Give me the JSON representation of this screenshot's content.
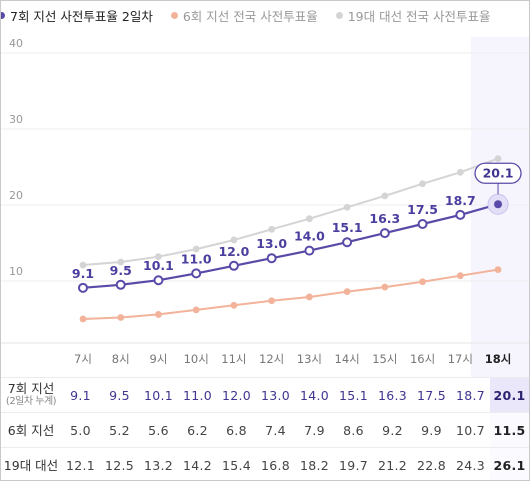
{
  "legend": [
    {
      "label": "7회 지선 사전투표율 2일차",
      "color": "#5a4aa8"
    },
    {
      "label": "6회 지선 전국 사전투표율",
      "color": "#f2b39a"
    },
    {
      "label": "19대 대선 전국 사전투표율",
      "color": "#d4d4d4"
    }
  ],
  "chart_data": {
    "type": "line",
    "categories": [
      "7시",
      "8시",
      "9시",
      "10시",
      "11시",
      "12시",
      "13시",
      "14시",
      "15시",
      "16시",
      "17시",
      "18시"
    ],
    "y_ticks": [
      "10",
      "20",
      "30",
      "40"
    ],
    "ylim": [
      0,
      43
    ],
    "grid": true,
    "highlight_category": "18시",
    "series": [
      {
        "name": "19대 대선 전국 사전투표율",
        "color": "#d4d4d4",
        "values": [
          12.1,
          12.5,
          13.2,
          14.2,
          15.4,
          16.8,
          18.2,
          19.7,
          21.2,
          22.8,
          24.3,
          26.1
        ],
        "show_labels": false
      },
      {
        "name": "6회 지선 전국 사전투표율",
        "color": "#f2b39a",
        "values": [
          5.0,
          5.2,
          5.6,
          6.2,
          6.8,
          7.4,
          7.9,
          8.6,
          9.2,
          9.9,
          10.7,
          11.5
        ],
        "show_labels": false
      },
      {
        "name": "7회 지선 사전투표율 2일차",
        "color": "#5a4aa8",
        "values": [
          9.1,
          9.5,
          10.1,
          11.0,
          12.0,
          13.0,
          14.0,
          15.1,
          16.3,
          17.5,
          18.7,
          20.1
        ],
        "show_labels": true
      }
    ]
  },
  "table": {
    "header": [
      "7시",
      "8시",
      "9시",
      "10시",
      "11시",
      "12시",
      "13시",
      "14시",
      "15시",
      "16시",
      "17시",
      "18시"
    ],
    "rows": [
      {
        "label": "7회 지선",
        "sublabel": "(2일차 누계)",
        "values": [
          "9.1",
          "9.5",
          "10.1",
          "11.0",
          "12.0",
          "13.0",
          "14.0",
          "15.1",
          "16.3",
          "17.5",
          "18.7",
          "20.1"
        ]
      },
      {
        "label": "6회 지선",
        "sublabel": "",
        "values": [
          "5.0",
          "5.2",
          "5.6",
          "6.2",
          "6.8",
          "7.4",
          "7.9",
          "8.6",
          "9.2",
          "9.9",
          "10.7",
          "11.5"
        ]
      },
      {
        "label": "19대 대선",
        "sublabel": "",
        "values": [
          "12.1",
          "12.5",
          "13.2",
          "14.2",
          "15.4",
          "16.8",
          "18.2",
          "19.7",
          "21.2",
          "22.8",
          "24.3",
          "26.1"
        ]
      }
    ]
  }
}
